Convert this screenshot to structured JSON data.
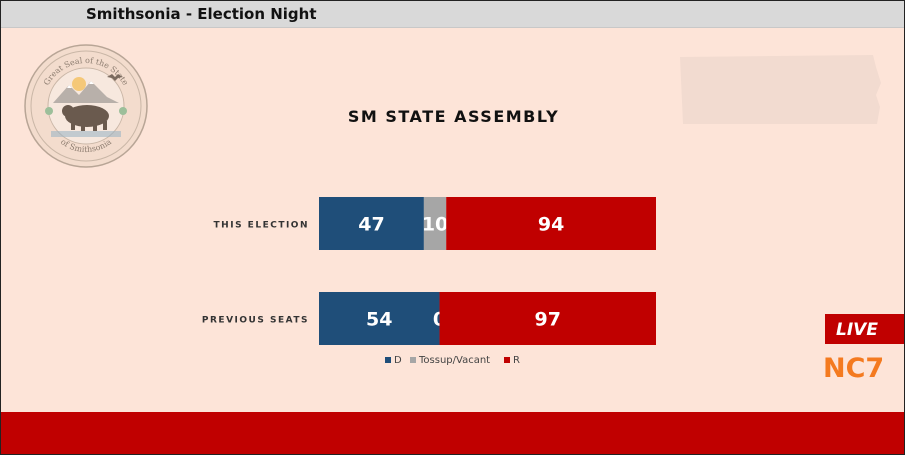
{
  "header": {
    "title": "Smithsonia - Election Night"
  },
  "seal": {
    "top_text": "Great Seal of the State",
    "bottom_text": "of Smithsonia"
  },
  "badge": {
    "live": "LIVE",
    "station": "NC7"
  },
  "colors": {
    "D": "#1f4e79",
    "Tossup": "#a6a6a6",
    "R": "#c00000",
    "bar": "#c00000",
    "station": "#f47a1f"
  },
  "chart_data": {
    "type": "bar",
    "stacked": true,
    "orientation": "horizontal",
    "title": "SM STATE ASSEMBLY",
    "categories": [
      "THIS ELECTION",
      "PREVIOUS SEATS"
    ],
    "series": [
      {
        "name": "D",
        "values": [
          47,
          54
        ]
      },
      {
        "name": "Tossup/Vacant",
        "values": [
          10,
          0
        ]
      },
      {
        "name": "R",
        "values": [
          94,
          97
        ]
      }
    ],
    "xlim": [
      0,
      151
    ],
    "legend": "bottom",
    "grid": false
  }
}
